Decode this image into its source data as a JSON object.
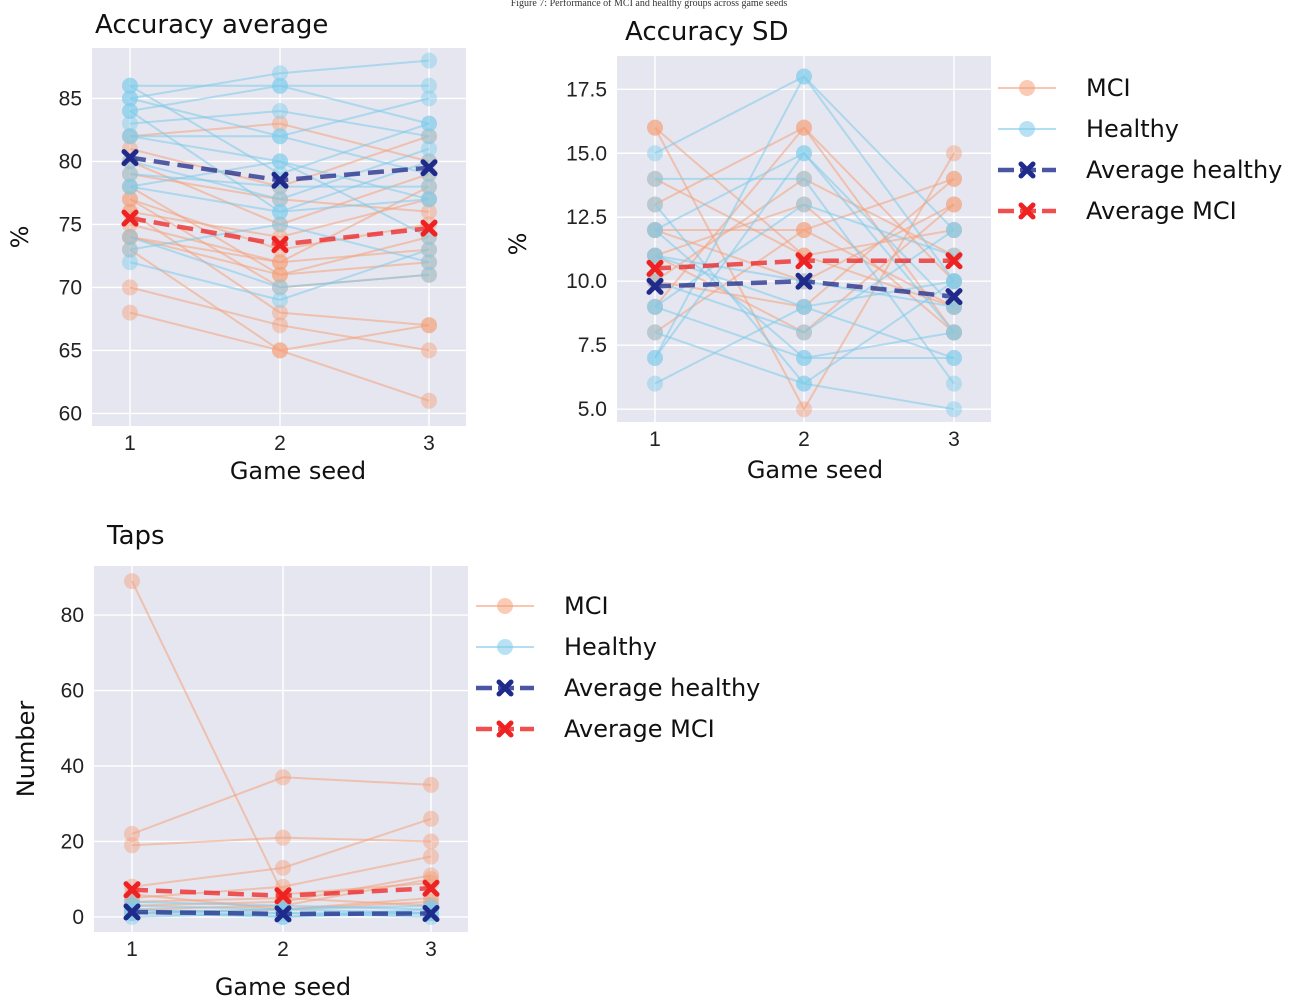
{
  "caption": "Figure 7: Performance of MCI and healthy groups across game seeds",
  "colors": {
    "mci": "#f5a07a",
    "healthy": "#7ecbea",
    "avg_healthy": "#1f2a8a",
    "avg_mci": "#ee2222",
    "panel_bg": "#e5e6ef",
    "grid": "#ffffff"
  },
  "legend": [
    {
      "label": "MCI",
      "kind": "mci"
    },
    {
      "label": "Healthy",
      "kind": "healthy"
    },
    {
      "label": "Average healthy",
      "kind": "avg_healthy"
    },
    {
      "label": "Average MCI",
      "kind": "avg_mci"
    }
  ],
  "chart_data": [
    {
      "type": "line",
      "title": "Accuracy average",
      "xlabel": "Game seed",
      "ylabel": "%",
      "categories": [
        "1",
        "2",
        "3"
      ],
      "ylim": [
        59,
        89
      ],
      "yticks": [
        60,
        65,
        70,
        75,
        80,
        85
      ],
      "ytick_labels": [
        "60",
        "65",
        "70",
        "75",
        "80",
        "85"
      ],
      "grid": true,
      "series": [
        {
          "name": "MCI",
          "group": "mci",
          "lines": [
            [
              68,
              65,
              61
            ],
            [
              70,
              67,
              65
            ],
            [
              73,
              65,
              67
            ],
            [
              74,
              71,
              72
            ],
            [
              75,
              72,
              73
            ],
            [
              76,
              68,
              67
            ],
            [
              77,
              70,
              71
            ],
            [
              77,
              73,
              75
            ],
            [
              78,
              71,
              74
            ],
            [
              79,
              77,
              76
            ],
            [
              80,
              75,
              79
            ],
            [
              82,
              83,
              80
            ],
            [
              74,
              72,
              78
            ],
            [
              81,
              78,
              82
            ],
            [
              76,
              74,
              77
            ]
          ]
        },
        {
          "name": "Healthy",
          "group": "healthy",
          "lines": [
            [
              72,
              69,
              73
            ],
            [
              74,
              70,
              71
            ],
            [
              78,
              76,
              77
            ],
            [
              78,
              80,
              74
            ],
            [
              82,
              82,
              79
            ],
            [
              83,
              84,
              82
            ],
            [
              84,
              86,
              83
            ],
            [
              85,
              87,
              88
            ],
            [
              85,
              82,
              85
            ],
            [
              86,
              86,
              86
            ],
            [
              84,
              76,
              80
            ],
            [
              80,
              77,
              81
            ],
            [
              82,
              80,
              77
            ],
            [
              86,
              79,
              83
            ],
            [
              73,
              75,
              72
            ],
            [
              79,
              78,
              78
            ]
          ]
        },
        {
          "name": "Average healthy",
          "group": "avg_healthy",
          "values": [
            80.3,
            78.5,
            79.5
          ]
        },
        {
          "name": "Average MCI",
          "group": "avg_mci",
          "values": [
            75.5,
            73.4,
            74.7
          ]
        }
      ]
    },
    {
      "type": "line",
      "title": "Accuracy SD",
      "xlabel": "Game seed",
      "ylabel": "%",
      "categories": [
        "1",
        "2",
        "3"
      ],
      "ylim": [
        4.5,
        18.8
      ],
      "yticks": [
        5.0,
        7.5,
        10.0,
        12.5,
        15.0,
        17.5
      ],
      "ytick_labels": [
        "5.0",
        "7.5",
        "10.0",
        "12.5",
        "15.0",
        "17.5"
      ],
      "grid": true,
      "series": [
        {
          "name": "MCI",
          "group": "mci",
          "lines": [
            [
              16,
              5,
              15
            ],
            [
              16,
              11,
              9
            ],
            [
              13,
              16,
              8
            ],
            [
              12,
              12,
              14
            ],
            [
              11,
              8,
              13
            ],
            [
              10,
              14,
              11
            ],
            [
              9,
              16,
              10
            ],
            [
              12,
              10,
              13
            ],
            [
              8,
              12,
              9
            ],
            [
              10,
              9,
              14
            ],
            [
              11,
              13,
              8
            ],
            [
              14,
              11,
              12
            ]
          ]
        },
        {
          "name": "Healthy",
          "group": "healthy",
          "lines": [
            [
              15,
              18,
              12
            ],
            [
              7,
              18,
              10
            ],
            [
              13,
              6,
              5
            ],
            [
              11,
              9,
              7
            ],
            [
              9,
              7,
              8
            ],
            [
              7,
              15,
              9
            ],
            [
              10,
              8,
              12
            ],
            [
              6,
              9,
              10
            ],
            [
              12,
              7,
              7
            ],
            [
              11,
              10,
              9
            ],
            [
              8,
              6,
              10
            ],
            [
              14,
              14,
              6
            ],
            [
              9,
              13,
              11
            ],
            [
              12,
              15,
              8
            ]
          ]
        },
        {
          "name": "Average healthy",
          "group": "avg_healthy",
          "values": [
            9.8,
            10.0,
            9.4
          ]
        },
        {
          "name": "Average MCI",
          "group": "avg_mci",
          "values": [
            10.5,
            10.8,
            10.8
          ]
        }
      ]
    },
    {
      "type": "line",
      "title": "Taps",
      "xlabel": "Game seed",
      "ylabel": "Number",
      "categories": [
        "1",
        "2",
        "3"
      ],
      "ylim": [
        -4,
        93
      ],
      "yticks": [
        0,
        20,
        40,
        60,
        80
      ],
      "ytick_labels": [
        "0",
        "20",
        "40",
        "60",
        "80"
      ],
      "grid": true,
      "series": [
        {
          "name": "MCI",
          "group": "mci",
          "lines": [
            [
              89,
              6,
              9
            ],
            [
              22,
              37,
              35
            ],
            [
              19,
              21,
              20
            ],
            [
              8,
              13,
              26
            ],
            [
              5,
              8,
              16
            ],
            [
              3,
              4,
              11
            ],
            [
              2,
              3,
              10
            ],
            [
              1,
              2,
              5
            ],
            [
              4,
              5,
              3
            ],
            [
              6,
              2,
              4
            ]
          ]
        },
        {
          "name": "Healthy",
          "group": "healthy",
          "lines": [
            [
              2,
              1,
              1
            ],
            [
              1,
              0,
              2
            ],
            [
              3,
              2,
              1
            ],
            [
              0,
              1,
              0
            ],
            [
              4,
              3,
              2
            ],
            [
              1,
              2,
              3
            ],
            [
              2,
              0,
              1
            ]
          ]
        },
        {
          "name": "Average healthy",
          "group": "avg_healthy",
          "values": [
            1.3,
            0.8,
            0.9
          ]
        },
        {
          "name": "Average MCI",
          "group": "avg_mci",
          "values": [
            7.2,
            5.6,
            7.6
          ]
        }
      ]
    }
  ]
}
